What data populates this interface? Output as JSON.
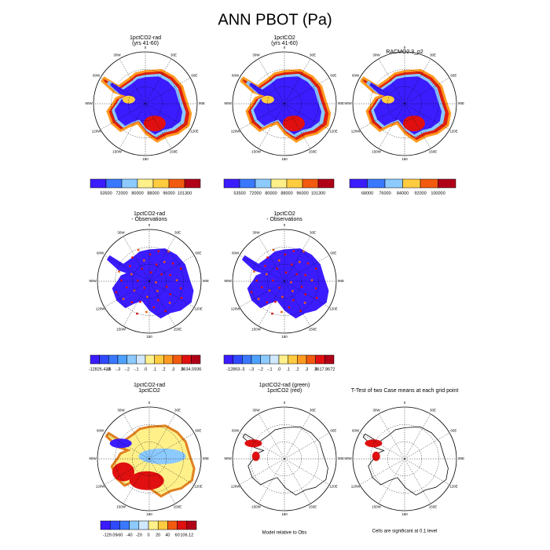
{
  "title": "ANN PBOT (Pa)",
  "lon_labels": [
    "0",
    "30E",
    "60E",
    "90E",
    "120E",
    "150E",
    "180",
    "150W",
    "120W",
    "90W",
    "60W",
    "30W"
  ],
  "panels": [
    {
      "title": [
        "1pctCO2-rad",
        "(yrs 41-60)"
      ],
      "colorbar": [
        "53500",
        "72000",
        "80000",
        "88000",
        "96000",
        "101300"
      ]
    },
    {
      "title": [
        "1pctCO2",
        "(yrs 41-60)"
      ],
      "colorbar": [
        "53500",
        "72000",
        "80000",
        "88000",
        "96000",
        "101300"
      ]
    },
    {
      "title": [
        "RACMO2.3_p2"
      ],
      "colorbar": [
        "68000",
        "76000",
        "84000",
        "92000",
        "100000"
      ]
    },
    {
      "title": [
        "1pctCO2-rad",
        "- Observations"
      ],
      "colorbar": [
        "-12826.438",
        "-.5",
        "-.3",
        "-.2",
        "-.1",
        ".0",
        ".1",
        ".2",
        ".3",
        ".5",
        "3634.5936"
      ]
    },
    {
      "title": [
        "1pctCO2",
        "- Observations"
      ],
      "colorbar": [
        "-12863",
        "-.5",
        "-.3",
        "-.2",
        "-.1",
        ".0",
        ".1",
        ".2",
        ".3",
        ".5",
        "3617.8672"
      ]
    },
    {
      "title": [
        "1pctCO2-rad",
        "1pctCO2"
      ],
      "colorbar": [
        "-129.09",
        "-60",
        "-40",
        "-20",
        "0",
        "20",
        "40",
        "60",
        "106.12"
      ]
    },
    {
      "title": [
        "1pctCO2-rad (green)",
        "1pctCO2 (red)"
      ],
      "note": "Model relative to Obs"
    },
    {
      "title": [
        "T-Test of two Case means at each grid point"
      ],
      "note": "Cells are significant at 0.1 level"
    }
  ]
}
